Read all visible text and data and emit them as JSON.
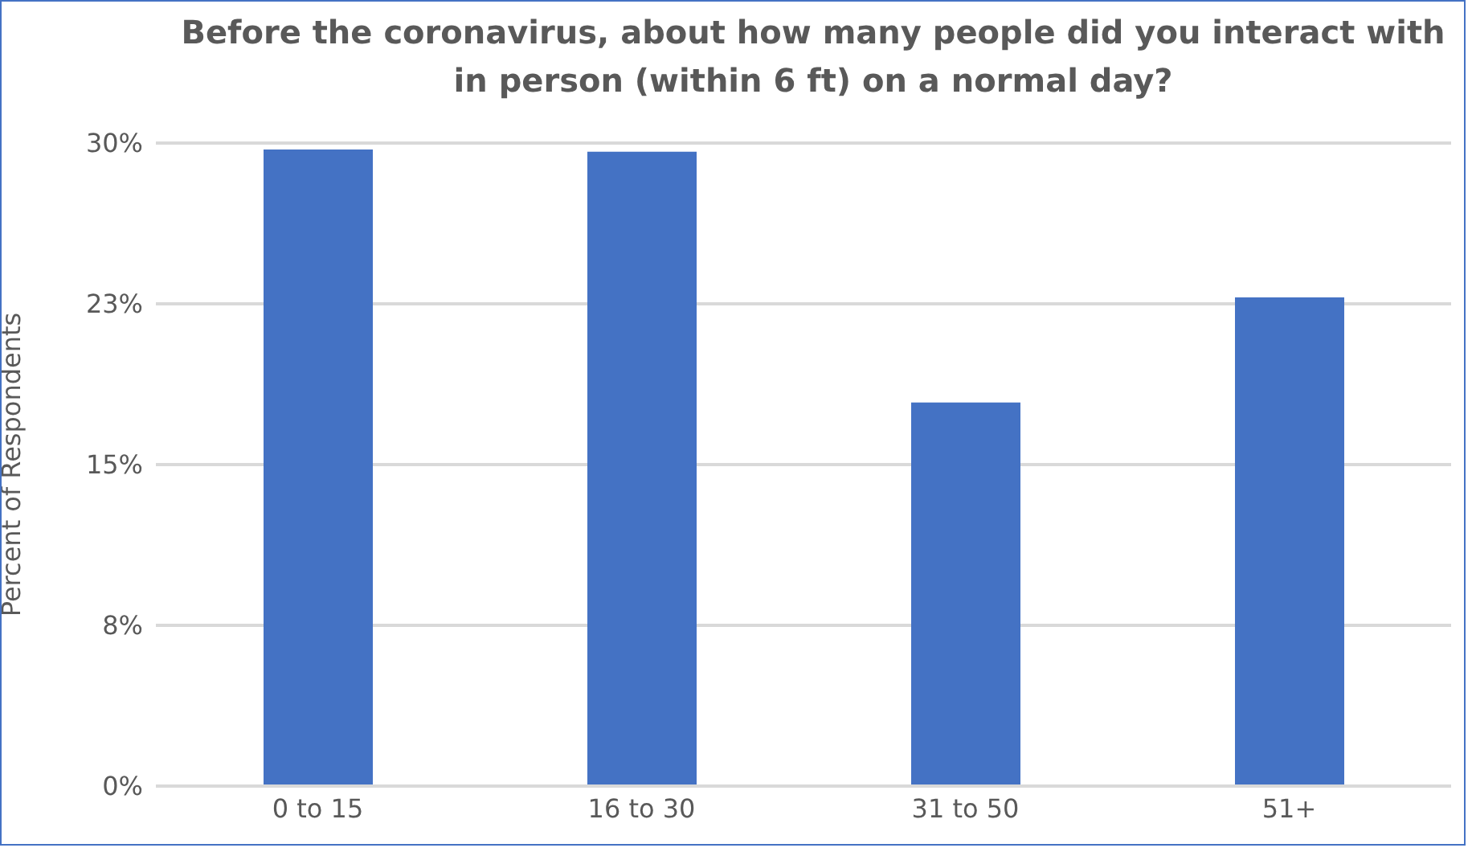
{
  "chart_data": {
    "type": "bar",
    "title": "Before the coronavirus, about how many people did you interact with in person (within 6 ft) on a normal day?",
    "ylabel": "Percent of Respondents",
    "categories": [
      "0 to 15",
      "16 to 30",
      "31 to 50",
      "51+"
    ],
    "values": [
      29.7,
      29.6,
      17.9,
      22.8
    ],
    "color": "#4472c4",
    "ylim": [
      0,
      30
    ],
    "yticks": [
      {
        "value": 0,
        "label": "0%"
      },
      {
        "value": 7.5,
        "label": "8%"
      },
      {
        "value": 15,
        "label": "15%"
      },
      {
        "value": 22.5,
        "label": "23%"
      },
      {
        "value": 30,
        "label": "30%"
      }
    ],
    "grid": "y"
  }
}
